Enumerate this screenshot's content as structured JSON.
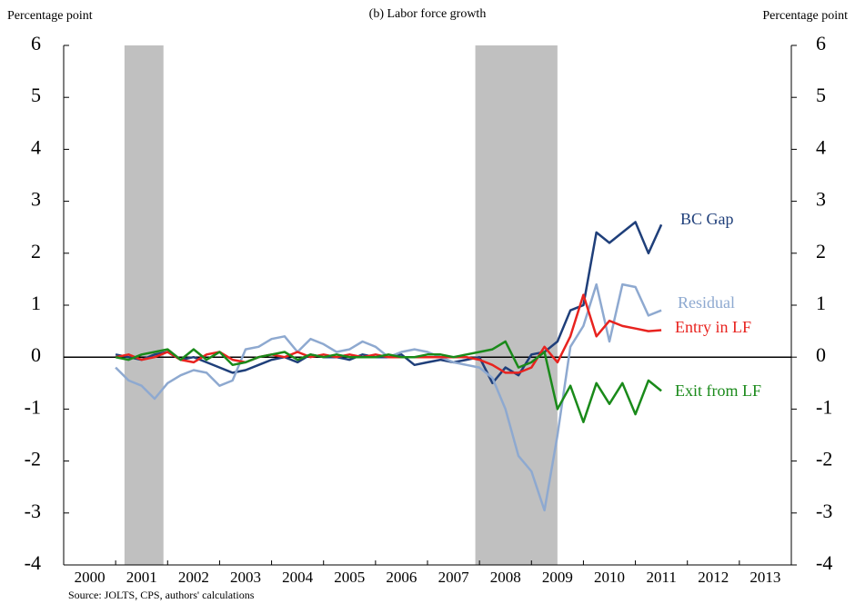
{
  "chart_data": {
    "type": "line",
    "title": "(b) Labor force growth",
    "y_label": "Percentage point",
    "y2_label": "Percentage point",
    "source": "Source: JOLTS, CPS, authors' calculations",
    "x": [
      2001.0,
      2001.25,
      2001.5,
      2001.75,
      2002.0,
      2002.25,
      2002.5,
      2002.75,
      2003.0,
      2003.25,
      2003.5,
      2003.75,
      2004.0,
      2004.25,
      2004.5,
      2004.75,
      2005.0,
      2005.25,
      2005.5,
      2005.75,
      2006.0,
      2006.25,
      2006.5,
      2006.75,
      2007.0,
      2007.25,
      2007.5,
      2007.75,
      2008.0,
      2008.25,
      2008.5,
      2008.75,
      2009.0,
      2009.25,
      2009.5,
      2009.75,
      2010.0,
      2010.25,
      2010.5,
      2010.75,
      2011.0,
      2011.25,
      2011.5
    ],
    "xlim": [
      2000,
      2014
    ],
    "xticks": [
      2000,
      2001,
      2002,
      2003,
      2004,
      2005,
      2006,
      2007,
      2008,
      2009,
      2010,
      2011,
      2012,
      2013
    ],
    "ylim": [
      -4,
      6
    ],
    "yticks": [
      -4,
      -3,
      -2,
      -1,
      0,
      1,
      2,
      3,
      4,
      5,
      6
    ],
    "y2lim": [
      -4,
      6
    ],
    "y2ticks": [
      -4,
      -3,
      -2,
      -1,
      0,
      1,
      2,
      3,
      4,
      5,
      6
    ],
    "recessions": [
      [
        2001.17,
        2001.92
      ],
      [
        2007.92,
        2009.5
      ]
    ],
    "recession_color": "#c0c0c0",
    "series": [
      {
        "name": "BC Gap",
        "color": "#1f3f7a",
        "values": [
          0.05,
          0.0,
          -0.05,
          0.05,
          0.1,
          -0.05,
          0.0,
          -0.1,
          -0.2,
          -0.3,
          -0.25,
          -0.15,
          -0.05,
          0.0,
          -0.1,
          0.05,
          0.0,
          0.0,
          -0.05,
          0.05,
          0.0,
          0.0,
          0.05,
          -0.15,
          -0.1,
          -0.05,
          -0.1,
          -0.05,
          0.0,
          -0.5,
          -0.2,
          -0.35,
          0.05,
          0.1,
          0.3,
          0.9,
          1.0,
          2.4,
          2.2,
          2.4,
          2.6,
          2.0,
          2.55
        ]
      },
      {
        "name": "Residual",
        "color": "#8ea9d0",
        "values": [
          -0.2,
          -0.45,
          -0.55,
          -0.8,
          -0.5,
          -0.35,
          -0.25,
          -0.3,
          -0.55,
          -0.45,
          0.15,
          0.2,
          0.35,
          0.4,
          0.1,
          0.35,
          0.25,
          0.1,
          0.15,
          0.3,
          0.2,
          0.0,
          0.1,
          0.15,
          0.1,
          0.0,
          -0.1,
          -0.15,
          -0.2,
          -0.4,
          -1.0,
          -1.9,
          -2.2,
          -2.95,
          -1.5,
          0.2,
          0.6,
          1.4,
          0.3,
          1.4,
          1.35,
          0.8,
          0.9
        ]
      },
      {
        "name": "Entry in LF",
        "color": "#e8231f",
        "values": [
          0.0,
          0.05,
          -0.05,
          0.0,
          0.1,
          -0.05,
          -0.1,
          0.05,
          0.1,
          -0.05,
          -0.1,
          0.0,
          0.05,
          0.0,
          0.1,
          0.0,
          0.05,
          0.0,
          0.05,
          0.0,
          0.05,
          0.0,
          0.0,
          0.0,
          0.0,
          0.0,
          0.0,
          0.0,
          -0.05,
          -0.15,
          -0.3,
          -0.3,
          -0.2,
          0.2,
          -0.1,
          0.4,
          1.2,
          0.4,
          0.7,
          0.6,
          0.55,
          0.5,
          0.52
        ]
      },
      {
        "name": "Exit from LF",
        "color": "#1a8a1a",
        "values": [
          0.0,
          -0.05,
          0.05,
          0.1,
          0.15,
          -0.05,
          0.15,
          -0.05,
          0.1,
          -0.15,
          -0.1,
          0.0,
          0.05,
          0.1,
          -0.05,
          0.05,
          0.0,
          0.05,
          0.0,
          0.0,
          0.0,
          0.05,
          0.0,
          0.0,
          0.05,
          0.05,
          0.0,
          0.05,
          0.1,
          0.15,
          0.3,
          -0.2,
          -0.1,
          0.1,
          -1.0,
          -0.55,
          -1.25,
          -0.5,
          -0.9,
          -0.5,
          -1.1,
          -0.45,
          -0.65
        ]
      }
    ]
  }
}
